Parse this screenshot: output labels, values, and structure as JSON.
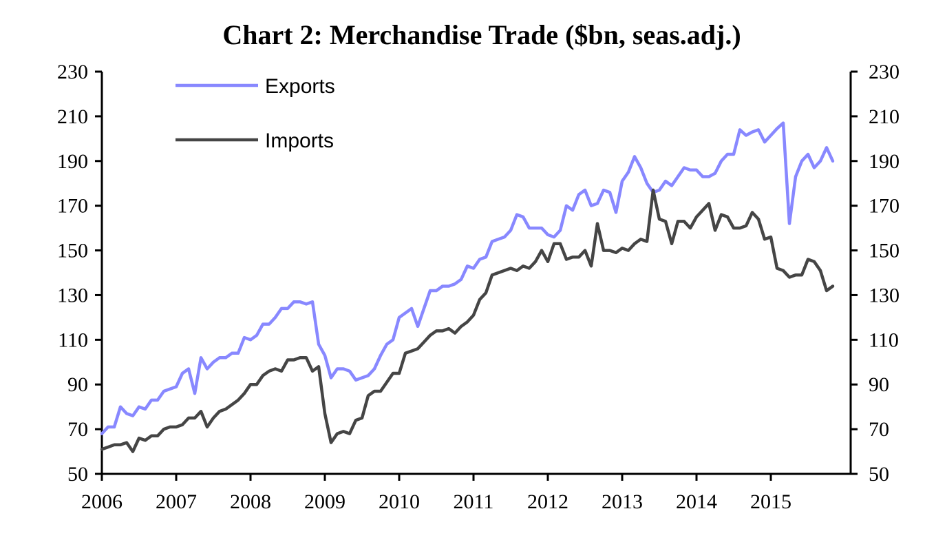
{
  "chart_data": {
    "type": "line",
    "title": "Chart 2: Merchandise Trade ($bn, seas.adj.)",
    "xlabel": "",
    "ylabel": "",
    "ylim": [
      50,
      230
    ],
    "yticks": [
      50,
      70,
      90,
      110,
      130,
      150,
      170,
      190,
      210,
      230
    ],
    "xticks": [
      "2006",
      "2007",
      "2008",
      "2009",
      "2010",
      "2011",
      "2012",
      "2013",
      "2014",
      "2015"
    ],
    "x_start": "2006-01",
    "frequency": "monthly",
    "legend_position": "top-left",
    "grid": false,
    "series": [
      {
        "name": "Exports",
        "color": "#8888ff",
        "values": [
          68,
          71,
          71,
          80,
          77,
          76,
          80,
          79,
          83,
          83,
          87,
          88,
          89,
          95,
          97,
          86,
          102,
          97,
          100,
          102,
          102,
          104,
          104,
          111,
          110,
          112,
          117,
          117,
          120,
          124,
          124,
          127,
          127,
          126,
          127,
          108,
          103,
          93,
          97,
          97,
          96,
          92,
          93,
          94,
          97,
          103,
          108,
          110,
          120,
          122,
          124,
          116,
          124,
          132,
          132,
          134,
          134,
          135,
          137,
          143,
          142,
          146,
          147,
          154,
          155,
          156,
          159,
          166,
          165,
          160,
          160,
          160,
          157,
          156,
          159,
          170,
          168,
          175,
          177,
          170,
          171,
          177,
          176,
          167,
          181,
          185,
          192,
          187,
          180,
          176,
          177,
          181,
          179,
          183,
          187,
          186,
          186,
          183,
          183,
          184.5,
          190,
          193,
          193,
          204,
          201.5,
          203,
          204,
          198.5,
          201.5,
          204.5,
          207,
          162,
          183,
          190,
          193,
          187,
          190,
          196,
          190
        ]
      },
      {
        "name": "Imports",
        "color": "#454545",
        "values": [
          61,
          62,
          63,
          63,
          64,
          60,
          66,
          65,
          67,
          67,
          70,
          71,
          71,
          72,
          75,
          75,
          78,
          71,
          75,
          78,
          79,
          81,
          83,
          86,
          90,
          90,
          94,
          96,
          97,
          96,
          101,
          101,
          102,
          102,
          96,
          98,
          77,
          64,
          68,
          69,
          68,
          74,
          75,
          85,
          87,
          87,
          91,
          95,
          95,
          104,
          105,
          106,
          109,
          112,
          114,
          114,
          115,
          113,
          116,
          118,
          121,
          128,
          131,
          139,
          140,
          141,
          142,
          141,
          143,
          142,
          145,
          150,
          145,
          153,
          153,
          146,
          147,
          147,
          150,
          143,
          162,
          150,
          150,
          149,
          151,
          150,
          153,
          155,
          154,
          177,
          164,
          163,
          153,
          163,
          163,
          160,
          165,
          168,
          171,
          159,
          166,
          165,
          160,
          160,
          161,
          167,
          164,
          155,
          156,
          142,
          141,
          138,
          139,
          139,
          146,
          145,
          141,
          132,
          134
        ]
      }
    ]
  }
}
